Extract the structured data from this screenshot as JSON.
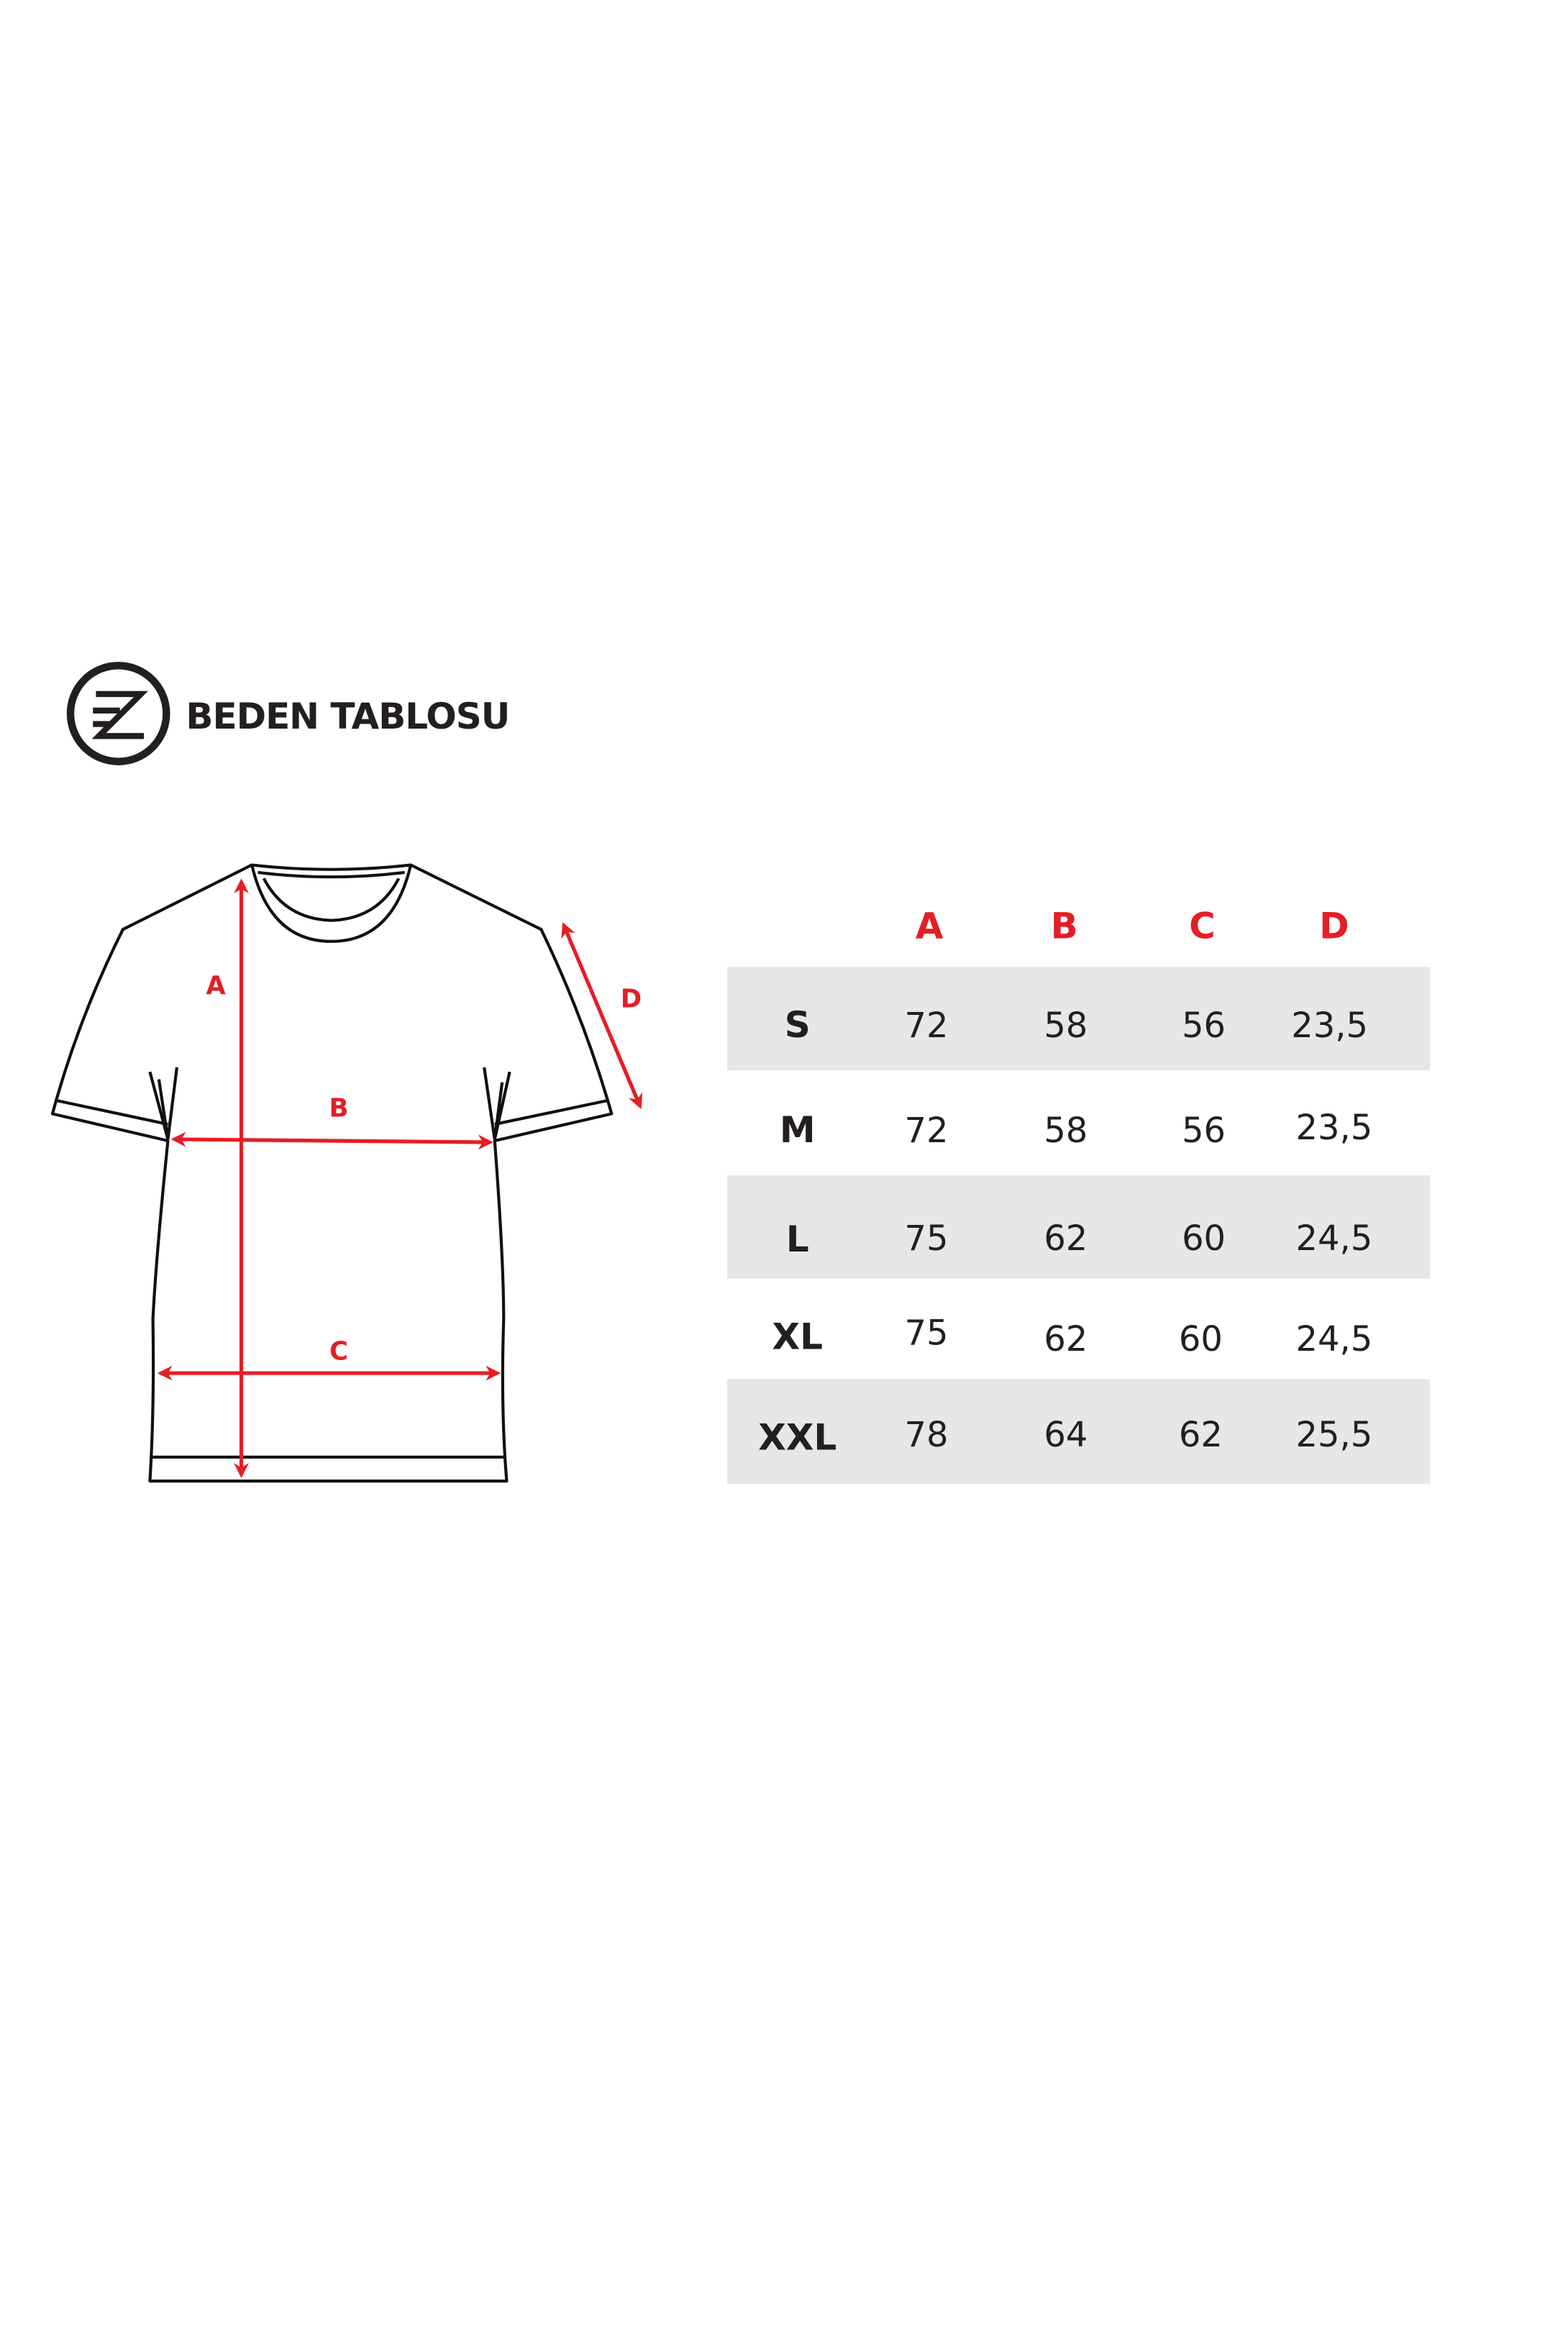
{
  "header": {
    "title": "BEDEN TABLOSU",
    "logo_text": "ZE"
  },
  "colors": {
    "accent": "#e41e26",
    "text": "#231f20",
    "row_band": "#e6e7e8"
  },
  "diagram": {
    "labels": [
      "A",
      "B",
      "C",
      "D"
    ]
  },
  "table": {
    "columns": [
      "A",
      "B",
      "C",
      "D"
    ],
    "rows": [
      {
        "size": "S",
        "values": [
          "72",
          "58",
          "56",
          "23,5"
        ]
      },
      {
        "size": "M",
        "values": [
          "72",
          "58",
          "56",
          "23,5"
        ]
      },
      {
        "size": "L",
        "values": [
          "75",
          "62",
          "60",
          "24,5"
        ]
      },
      {
        "size": "XL",
        "values": [
          "75",
          "62",
          "60",
          "24,5"
        ]
      },
      {
        "size": "XXL",
        "values": [
          "78",
          "64",
          "62",
          "25,5"
        ]
      }
    ]
  }
}
